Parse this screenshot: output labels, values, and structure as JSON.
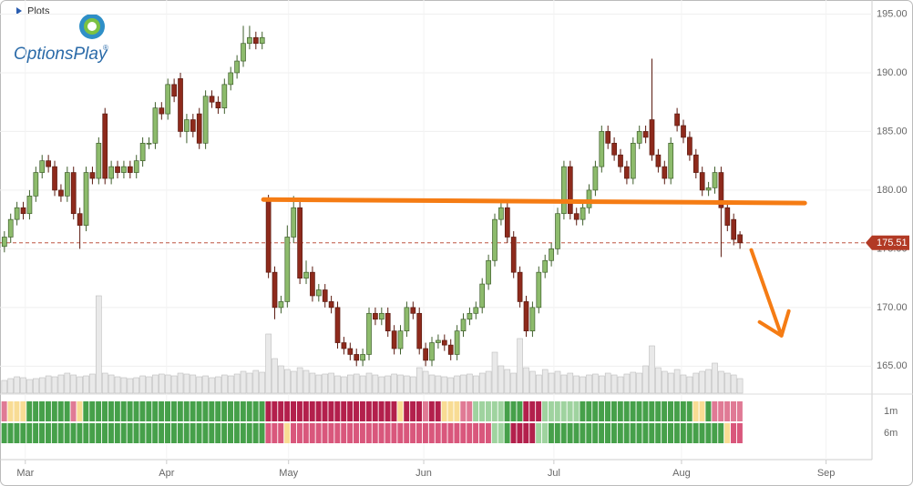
{
  "header": {
    "plots": "Plots",
    "logo": "OptionsPlay",
    "logo_mark": "®"
  },
  "chart_data": {
    "type": "candlestick",
    "xlim": [
      -0.7,
      138
    ],
    "ylim": [
      162.7,
      196.2
    ],
    "xticks": [
      {
        "value": 3.33,
        "label": "Mar"
      },
      {
        "value": 25.8,
        "label": "Apr"
      },
      {
        "value": 45.2,
        "label": "May"
      },
      {
        "value": 66.7,
        "label": "Jun"
      },
      {
        "value": 87.4,
        "label": "Jul"
      },
      {
        "value": 107.7,
        "label": "Aug"
      },
      {
        "value": 130.7,
        "label": "Sep"
      }
    ],
    "yticks": [
      {
        "value": 165,
        "label": "165.00"
      },
      {
        "value": 170,
        "label": "170.00"
      },
      {
        "value": 175,
        "label": "175.00"
      },
      {
        "value": 180,
        "label": "180.00"
      },
      {
        "value": 185,
        "label": "185.00"
      },
      {
        "value": 190,
        "label": "190.00"
      },
      {
        "value": 195,
        "label": "195.00"
      }
    ],
    "grid": true,
    "up_color": "#8dbb6c",
    "down_color": "#8e2a1c",
    "open": [
      175.2,
      176,
      177.5,
      178.5,
      178,
      179.5,
      181.5,
      182.5,
      182,
      180,
      179.5,
      181.5,
      178,
      177,
      181.5,
      181,
      186.5,
      181,
      182,
      181.5,
      182,
      181.5,
      182.5,
      184,
      184,
      187,
      186.5,
      189,
      189.5,
      185,
      186,
      186.5,
      184,
      188,
      187.5,
      187,
      189,
      190,
      191,
      192.5,
      193,
      192.5,
      179.2,
      173,
      170,
      170.5,
      176,
      178.5,
      172.5,
      173,
      171,
      171.5,
      170.5,
      170,
      167,
      166.5,
      166,
      165.5,
      166,
      169.5,
      169,
      169.5,
      168,
      166.5,
      168,
      170,
      169.5,
      166.5,
      165.5,
      167,
      167.2,
      166.8,
      166,
      168,
      169,
      169.5,
      170,
      172,
      174,
      177.5,
      178.5,
      176,
      173,
      170.5,
      168,
      170,
      173,
      174,
      175,
      178,
      182,
      178,
      177.5,
      178.5,
      180,
      182,
      185,
      184,
      183,
      182,
      181,
      184,
      185,
      186,
      183,
      182,
      181,
      186.5,
      185.5,
      184.5,
      183,
      181.5,
      180,
      180.2,
      181.5,
      178.5,
      177.5,
      176.2
    ],
    "high": [
      176.5,
      178,
      179,
      179,
      180,
      182,
      183,
      183,
      182.5,
      180.5,
      182,
      182,
      178.5,
      182,
      182,
      184.5,
      187,
      182.5,
      182.5,
      182.5,
      182.5,
      183,
      184.5,
      184.5,
      187.5,
      187.5,
      189.5,
      189.5,
      190,
      186.5,
      186.5,
      187,
      188.5,
      188.5,
      188,
      189.5,
      190.5,
      191.5,
      194,
      194,
      193.5,
      193.5,
      179.6,
      173.5,
      171,
      177,
      179.5,
      179,
      174,
      173.5,
      172,
      172,
      171,
      170.5,
      167.5,
      167,
      166.5,
      166.5,
      170,
      170,
      170,
      170,
      168.5,
      168.5,
      170.5,
      170.5,
      170,
      167,
      167.5,
      167.7,
      167.7,
      167.3,
      168.5,
      169.5,
      170,
      170.5,
      172.5,
      174.5,
      178,
      179,
      179,
      176.5,
      173.5,
      171,
      170.5,
      173.5,
      174.5,
      175.5,
      178.5,
      182.5,
      182.5,
      178.5,
      179,
      180.5,
      182.5,
      185.5,
      185.5,
      184.5,
      183.5,
      182.5,
      184.5,
      185.5,
      185.5,
      191.2,
      183.5,
      182.5,
      184.5,
      187,
      186,
      185,
      183.5,
      182,
      180.7,
      182,
      182,
      179,
      178,
      176.5
    ],
    "low": [
      174.7,
      175.5,
      177,
      177.5,
      177.5,
      179,
      181,
      181.5,
      179.5,
      179,
      179,
      177.5,
      175,
      176.5,
      180.5,
      180.5,
      180.5,
      180.5,
      181,
      181,
      181,
      181,
      182,
      183.5,
      183.5,
      186,
      186,
      187.5,
      184.5,
      184,
      184.5,
      183.5,
      183.5,
      187,
      186.5,
      186.5,
      188.5,
      189.5,
      190.5,
      192,
      192,
      192,
      172.5,
      169,
      169.5,
      170,
      175.5,
      172,
      172,
      170.5,
      170.5,
      170,
      169.5,
      166.5,
      166,
      165.5,
      165,
      165,
      165.5,
      168.5,
      168.5,
      167.5,
      166,
      166,
      167.5,
      169,
      166,
      165,
      165,
      166.5,
      166.3,
      165.5,
      165.5,
      167.5,
      168.5,
      169,
      169.5,
      171.5,
      173.5,
      177,
      175.5,
      172.5,
      170,
      167.5,
      167.5,
      169.5,
      172.5,
      173.5,
      174.5,
      177.5,
      177.5,
      177,
      177,
      178,
      179.5,
      181.5,
      183.5,
      182.5,
      181.5,
      180.5,
      180.5,
      183.5,
      184,
      182.5,
      181.5,
      180.5,
      180.5,
      185,
      184,
      182.5,
      181,
      179.5,
      179.5,
      179.7,
      174.3,
      176.5,
      175.3,
      175
    ],
    "close": [
      176,
      177.5,
      178.5,
      178,
      179.5,
      181.5,
      182.5,
      182,
      180,
      179.5,
      181.5,
      178,
      177,
      181.5,
      181,
      184,
      181,
      182,
      181.5,
      182,
      181.5,
      182.5,
      184,
      184,
      187,
      186.5,
      189,
      188,
      185,
      186,
      185,
      184,
      188,
      187.5,
      187,
      189,
      190,
      191,
      192.5,
      193,
      192.5,
      193,
      173,
      170,
      170.5,
      176,
      178.5,
      172.5,
      173,
      171,
      171.5,
      170.5,
      170,
      167,
      166.5,
      166,
      165.5,
      166,
      169.5,
      169,
      169.5,
      168,
      166.5,
      168,
      170,
      169.5,
      166.5,
      165.5,
      167,
      167.2,
      166.8,
      166,
      168,
      169,
      169.5,
      170,
      172,
      174,
      177.5,
      178.5,
      176,
      173,
      170.5,
      168,
      170,
      173,
      174,
      175,
      178,
      182,
      178,
      177.5,
      178.5,
      180,
      182,
      185,
      184,
      183,
      182,
      181,
      184,
      185,
      184.5,
      183,
      182,
      181,
      184,
      185.5,
      184.5,
      183,
      181.5,
      180,
      180.2,
      181.5,
      178.5,
      177,
      175.8,
      175.51
    ],
    "volume": [
      14,
      16,
      18,
      17,
      15,
      16,
      17,
      19,
      18,
      20,
      22,
      20,
      18,
      19,
      21,
      107,
      22,
      20,
      18,
      17,
      16,
      17,
      19,
      18,
      20,
      21,
      20,
      19,
      22,
      21,
      20,
      18,
      19,
      17,
      18,
      20,
      19,
      21,
      24,
      22,
      25,
      23,
      65,
      38,
      30,
      26,
      24,
      28,
      25,
      22,
      20,
      21,
      22,
      19,
      18,
      20,
      21,
      19,
      22,
      20,
      18,
      19,
      21,
      20,
      19,
      18,
      28,
      24,
      20,
      19,
      18,
      17,
      19,
      20,
      21,
      19,
      22,
      24,
      45,
      30,
      26,
      22,
      60,
      28,
      24,
      20,
      26,
      22,
      24,
      20,
      22,
      19,
      18,
      20,
      21,
      19,
      22,
      20,
      18,
      21,
      23,
      22,
      30,
      52,
      28,
      24,
      22,
      26,
      20,
      18,
      22,
      24,
      26,
      33,
      24,
      22,
      20,
      16
    ],
    "volume_color": "#e9e9e9",
    "last_price": 175.51,
    "last_price_color": "#b23a25",
    "trendline": {
      "x": [
        41.2,
        127.3
      ],
      "y": [
        179.2,
        178.9
      ],
      "color": "#f57c14"
    },
    "arrow": {
      "x": [
        118.8,
        123.6
      ],
      "y": [
        174.9,
        167.6
      ],
      "color": "#f57c14"
    },
    "strips": [
      {
        "name": "1m",
        "segments": [
          {
            "color": "#e07a95",
            "count": 1
          },
          {
            "color": "#f8dc94",
            "count": 3
          },
          {
            "color": "#46a04a",
            "count": 7
          },
          {
            "color": "#e07a95",
            "count": 1
          },
          {
            "color": "#f8dc94",
            "count": 1
          },
          {
            "color": "#46a04a",
            "count": 29
          },
          {
            "color": "#b3204c",
            "count": 21
          },
          {
            "color": "#f8dc94",
            "count": 1
          },
          {
            "color": "#b3204c",
            "count": 3
          },
          {
            "color": "#e07a95",
            "count": 1
          },
          {
            "color": "#b3204c",
            "count": 2
          },
          {
            "color": "#f8dc94",
            "count": 3
          },
          {
            "color": "#e07a95",
            "count": 2
          },
          {
            "color": "#9fd39f",
            "count": 5
          },
          {
            "color": "#46a04a",
            "count": 3
          },
          {
            "color": "#b3204c",
            "count": 3
          },
          {
            "color": "#9fd39f",
            "count": 6
          },
          {
            "color": "#46a04a",
            "count": 18
          },
          {
            "color": "#f8dc94",
            "count": 2
          },
          {
            "color": "#46a04a",
            "count": 1
          },
          {
            "color": "#e07a95",
            "count": 5
          }
        ]
      },
      {
        "name": "6m",
        "segments": [
          {
            "color": "#46a04a",
            "count": 42
          },
          {
            "color": "#d9577c",
            "count": 3
          },
          {
            "color": "#f8dc94",
            "count": 1
          },
          {
            "color": "#d9577c",
            "count": 32
          },
          {
            "color": "#9fd39f",
            "count": 2
          },
          {
            "color": "#46a04a",
            "count": 1
          },
          {
            "color": "#b3204c",
            "count": 4
          },
          {
            "color": "#9fd39f",
            "count": 2
          },
          {
            "color": "#46a04a",
            "count": 28
          },
          {
            "color": "#f8dc94",
            "count": 1
          },
          {
            "color": "#d9577c",
            "count": 2
          }
        ]
      }
    ]
  }
}
